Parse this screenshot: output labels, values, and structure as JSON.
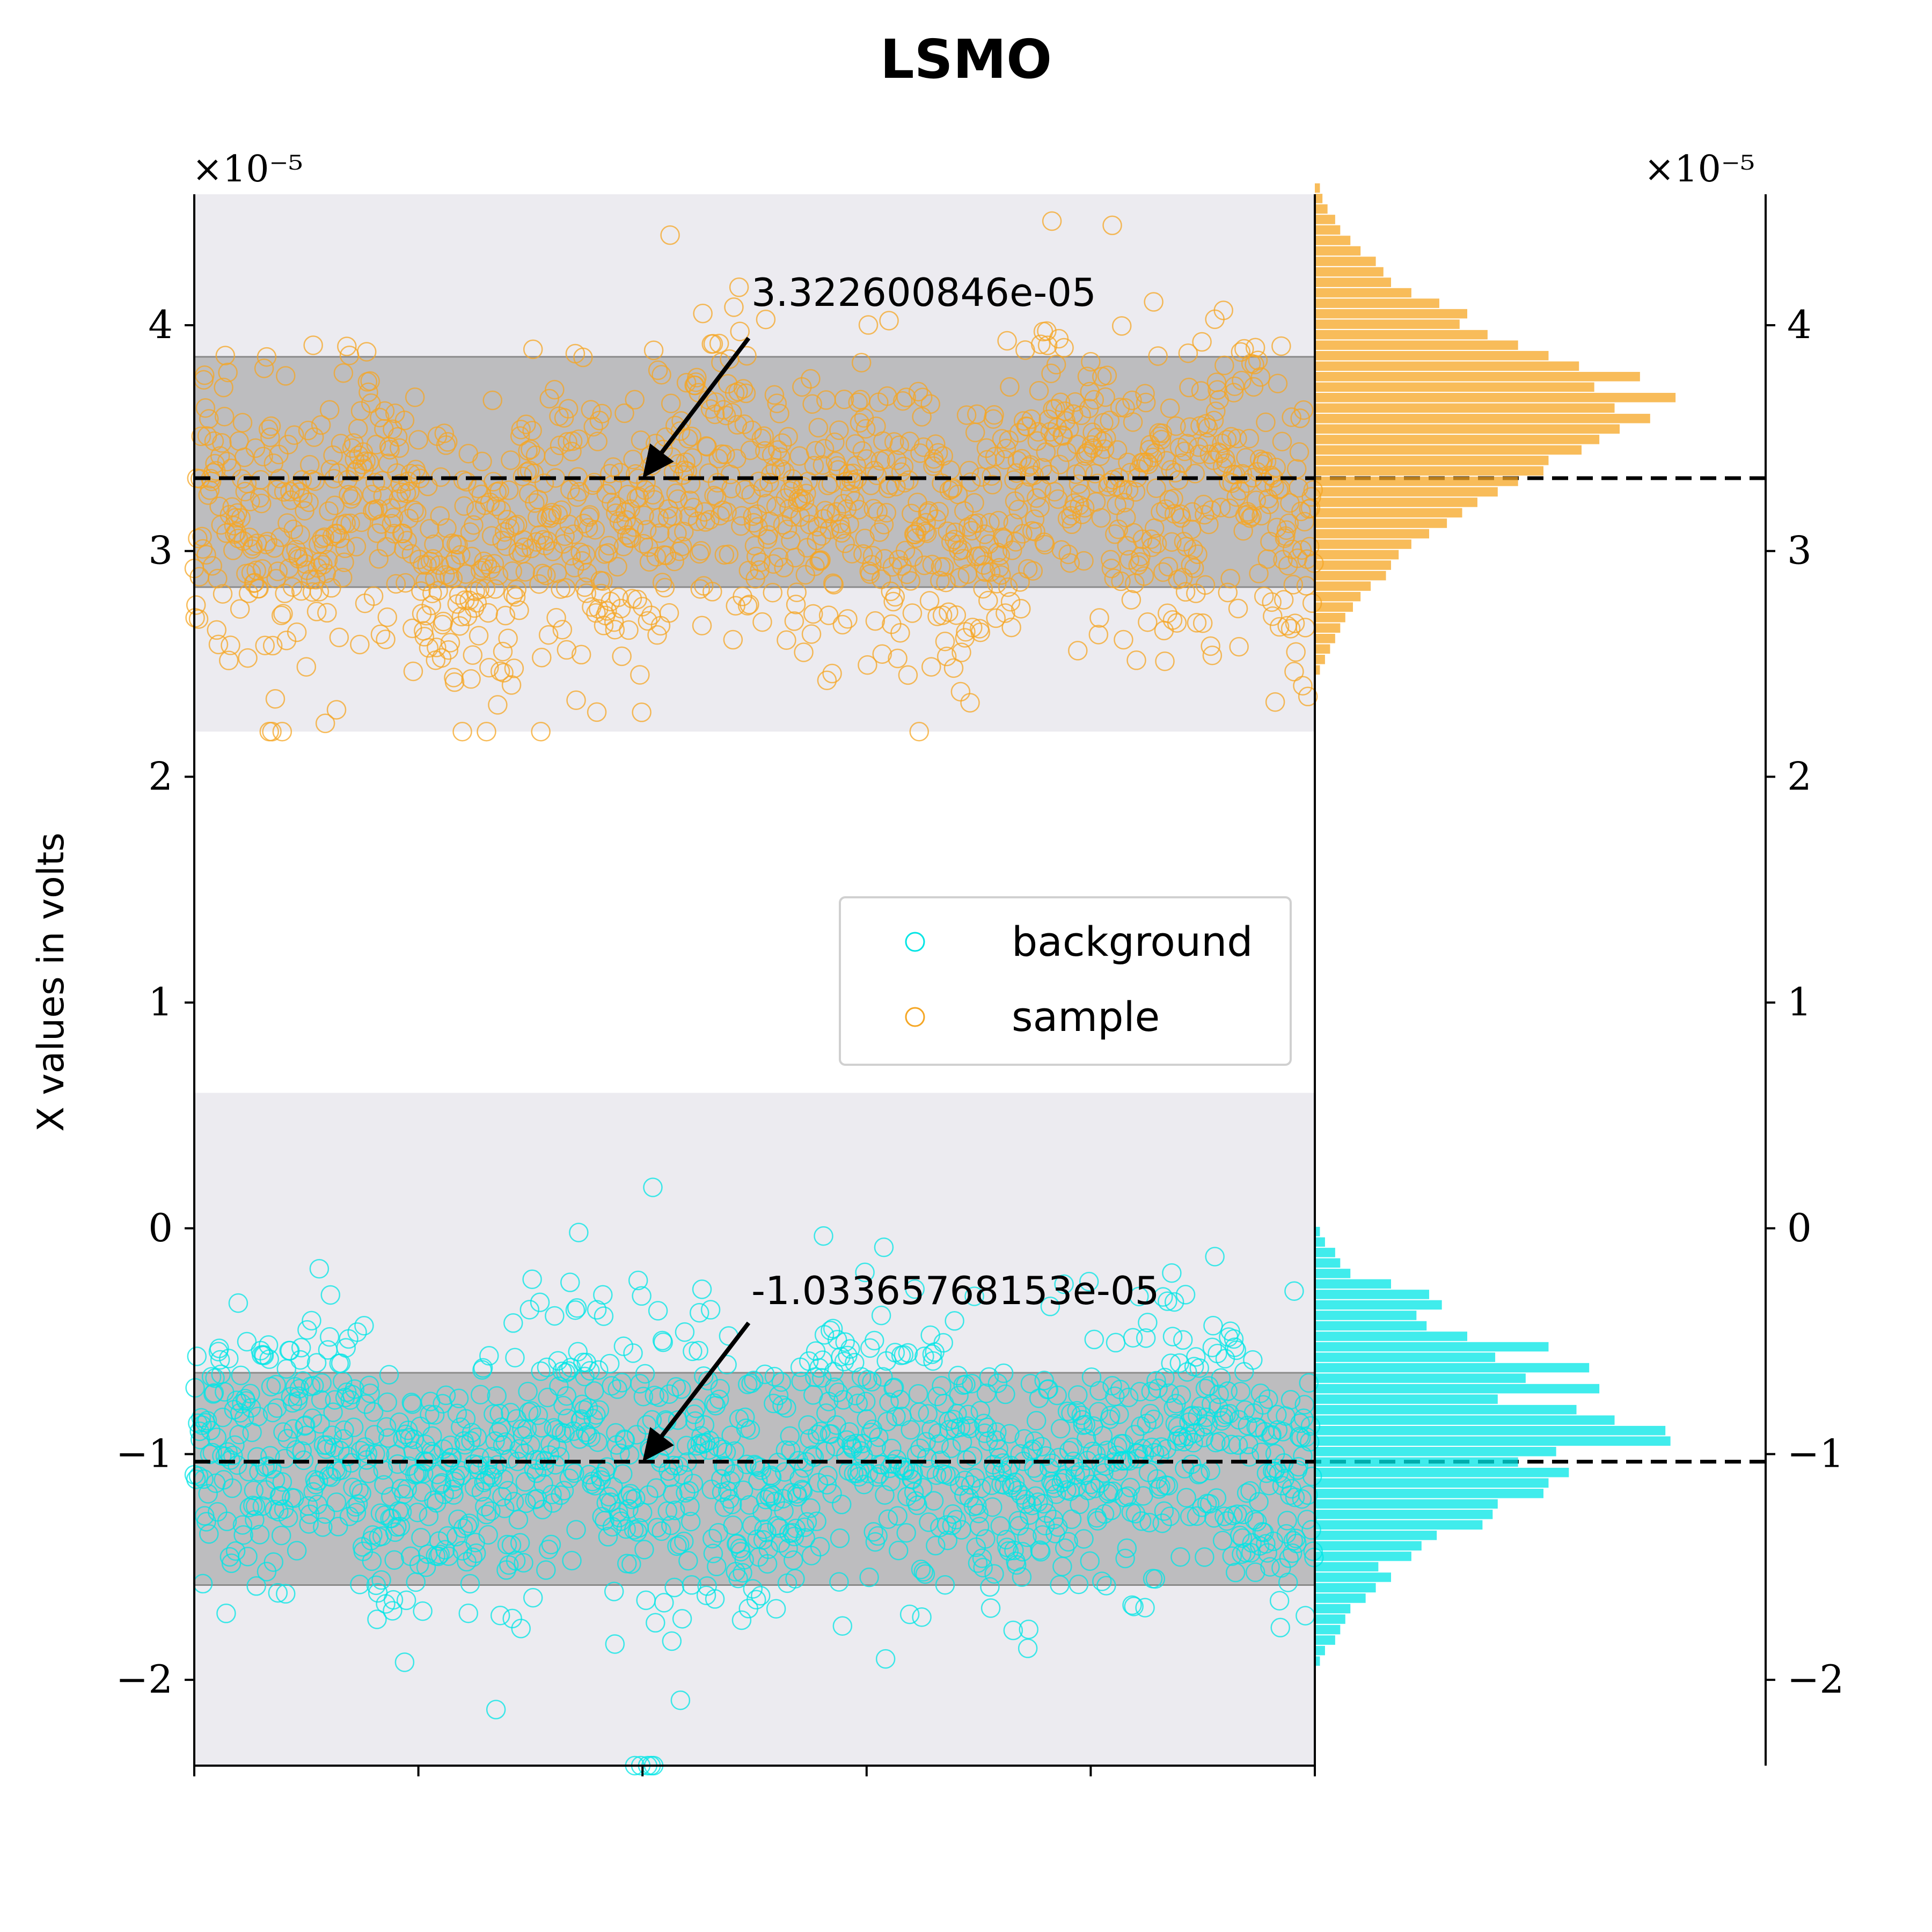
{
  "chart_data": {
    "type": "scatter",
    "title": "LSMO",
    "ylabel": "X values in volts",
    "xlabel": "",
    "y_scale_label": "×10⁻⁵",
    "right_y_scale_label": "×10⁻⁵",
    "ylim": [
      -2.38,
      4.58
    ],
    "yticks": [
      -2,
      -1,
      0,
      1,
      2,
      3,
      4
    ],
    "ytick_labels": [
      "−2",
      "−1",
      "0",
      "1",
      "2",
      "3",
      "4"
    ],
    "xlim": [
      0,
      5000
    ],
    "xticks": [
      0,
      1000,
      2000,
      3000,
      4000,
      5000
    ],
    "legend": {
      "placement": "center-right",
      "entries": [
        "background",
        "sample"
      ]
    },
    "series": [
      {
        "name": "sample",
        "color": "#f5a623",
        "mean": 3.322600846,
        "band_1sigma": [
          2.84,
          3.86
        ],
        "band_3sigma": [
          2.2,
          4.58
        ],
        "range": [
          2.2,
          4.57
        ],
        "annotation": "3.322600846e-05"
      },
      {
        "name": "background",
        "color": "#00e5e5",
        "mean": -1.03365768153,
        "band_1sigma": [
          -1.58,
          -0.64
        ],
        "band_3sigma": [
          -2.38,
          0.6
        ],
        "range": [
          -2.38,
          0.6
        ],
        "annotation": "-1.03365768153e-05"
      }
    ],
    "histograms": [
      {
        "series": "sample",
        "bin_start": 2.45,
        "bin_width": 0.0464,
        "counts": [
          2,
          4,
          6,
          8,
          10,
          12,
          15,
          18,
          22,
          28,
          30,
          33,
          38,
          45,
          52,
          58,
          64,
          72,
          80,
          90,
          92,
          105,
          112,
          120,
          132,
          118,
          142,
          110,
          128,
          104,
          92,
          80,
          68,
          57,
          60,
          49,
          38,
          30,
          27,
          24,
          18,
          14,
          10,
          8,
          5,
          3,
          2
        ]
      },
      {
        "series": "background",
        "bin_start": -1.94,
        "bin_width": 0.0464,
        "counts": [
          2,
          4,
          8,
          10,
          12,
          14,
          20,
          24,
          30,
          25,
          38,
          42,
          48,
          66,
          70,
          72,
          90,
          92,
          100,
          80,
          95,
          140,
          138,
          118,
          103,
          72,
          112,
          83,
          108,
          71,
          92,
          60,
          44,
          40,
          50,
          45,
          30,
          14,
          10,
          8,
          4,
          2
        ]
      }
    ]
  }
}
